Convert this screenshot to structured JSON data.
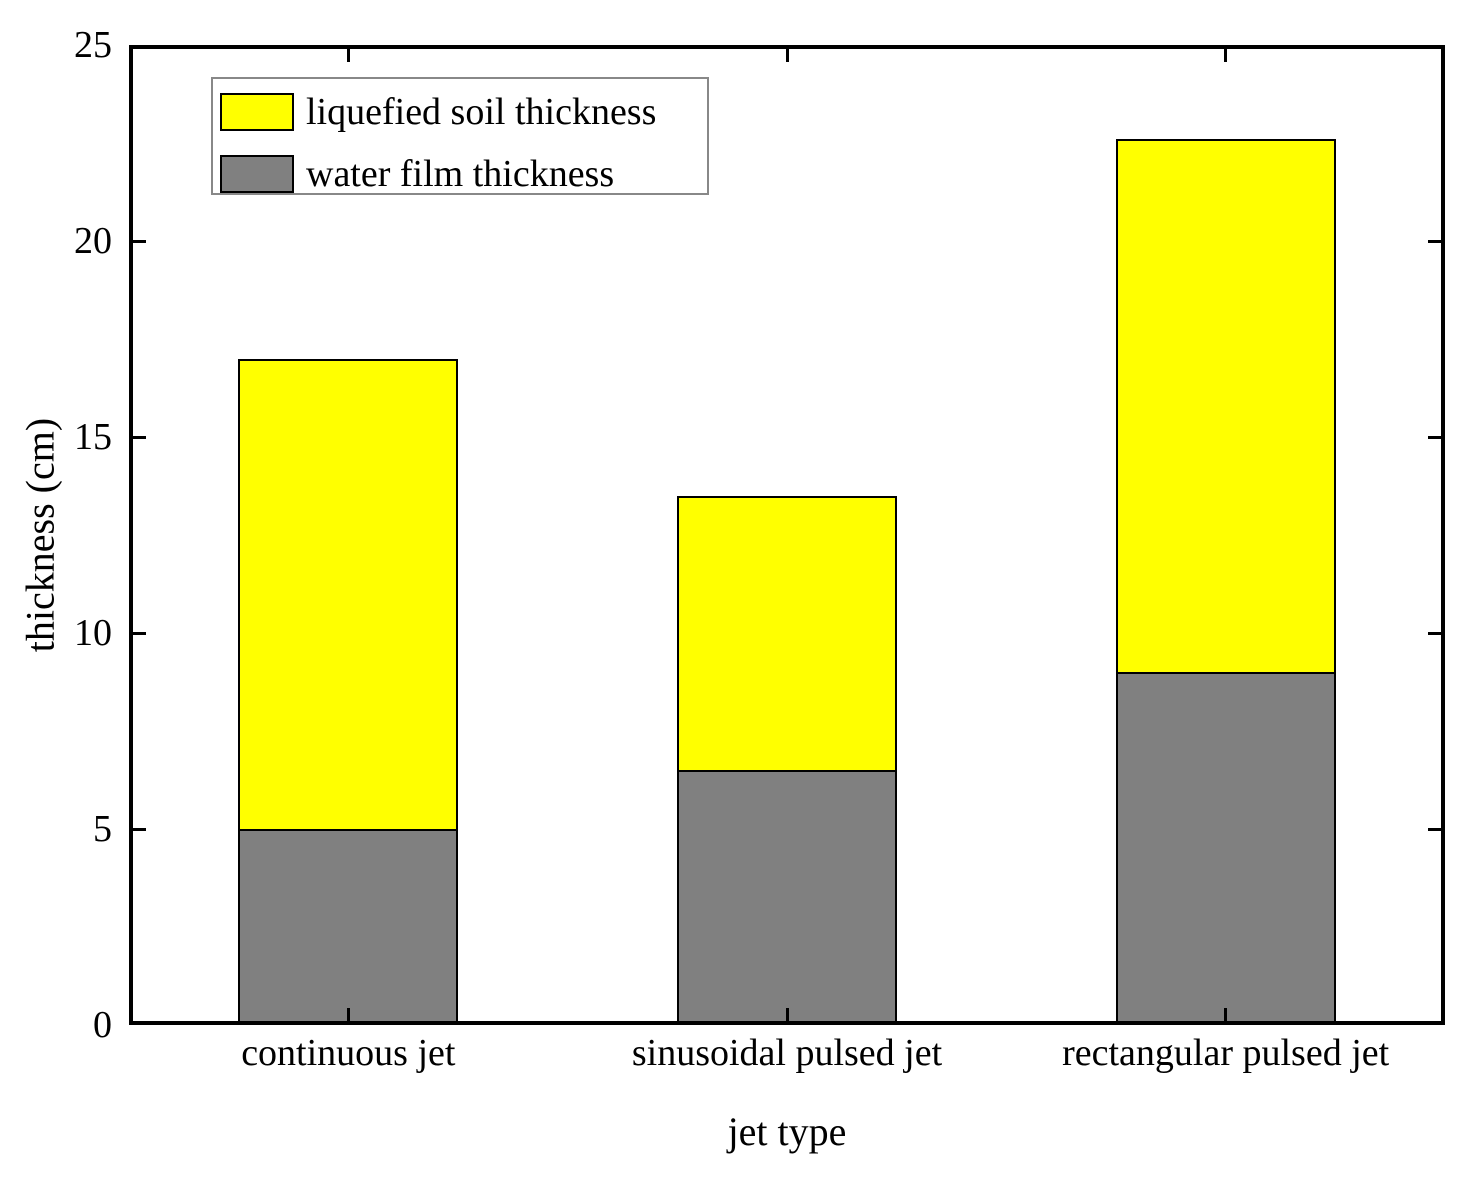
{
  "chart_data": {
    "type": "bar",
    "stacked": true,
    "title": "",
    "xlabel": "jet type",
    "ylabel": "thickness (cm)",
    "categories": [
      "continuous jet",
      "sinusoidal pulsed jet",
      "rectangular pulsed jet"
    ],
    "series": [
      {
        "name": "water film thickness",
        "color": "#808080",
        "values": [
          5.0,
          6.5,
          9.0
        ]
      },
      {
        "name": "liquefied soil thickness",
        "color": "#FFFF00",
        "values": [
          12.0,
          7.0,
          13.6
        ]
      }
    ],
    "stack_totals": [
      17.0,
      13.5,
      22.6
    ],
    "ylim": [
      0,
      25
    ],
    "yticks": [
      0,
      5,
      10,
      15,
      20,
      25
    ],
    "grid": false,
    "legend": {
      "position": "upper-left",
      "entries": [
        {
          "label": "liquefied soil thickness",
          "color": "#FFFF00"
        },
        {
          "label": "water film thickness",
          "color": "#808080"
        }
      ]
    },
    "colors": {
      "axis": "#000000",
      "bar_edge": "#000000",
      "background": "#FFFFFF",
      "legend_border": "#888888"
    }
  }
}
